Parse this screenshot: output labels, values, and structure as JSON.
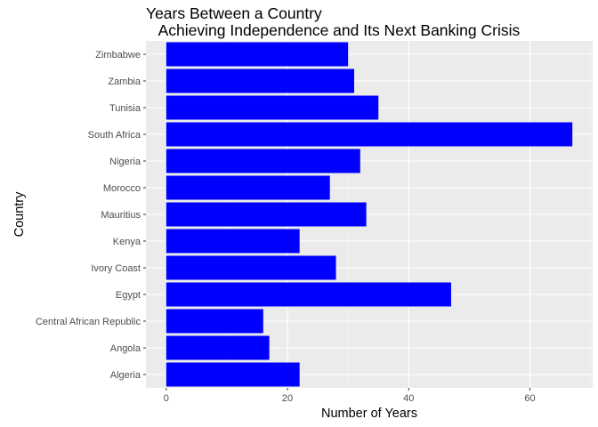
{
  "chart_data": {
    "type": "bar",
    "orientation": "horizontal",
    "title": "Years Between a Country\n   Achieving Independence and Its Next Banking Crisis",
    "title_lines": [
      "Years Between a Country",
      "   Achieving Independence and Its Next Banking Crisis"
    ],
    "xlabel": "Number of Years",
    "ylabel": "Country",
    "categories": [
      "Algeria",
      "Angola",
      "Central African Republic",
      "Egypt",
      "Ivory Coast",
      "Kenya",
      "Mauritius",
      "Morocco",
      "Nigeria",
      "South Africa",
      "Tunisia",
      "Zambia",
      "Zimbabwe"
    ],
    "values": [
      22,
      17,
      16,
      47,
      28,
      22,
      33,
      27,
      32,
      67,
      35,
      31,
      30
    ],
    "xlim": [
      -3.35,
      70.35
    ],
    "xticks": [
      0,
      20,
      40,
      60
    ],
    "grid": true,
    "legend": "none",
    "colors": {
      "bar": "#0000FF",
      "panel": "#EBEBEB",
      "grid_major": "#FFFFFF",
      "grid_minor": "#F5F5F5",
      "tick_text": "#4D4D4D",
      "text": "#000000"
    }
  }
}
